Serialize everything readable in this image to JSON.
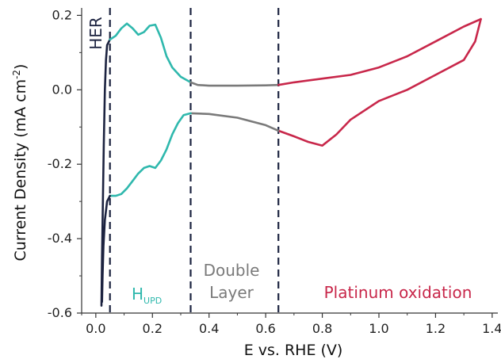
{
  "chart_data": {
    "type": "line",
    "xlabel": "E vs. RHE (V)",
    "ylabel_main": "Current Density (mA cm",
    "ylabel_sup": "-2",
    "ylabel_close": ")",
    "xlim": [
      -0.05,
      1.42
    ],
    "ylim": [
      -0.6,
      0.22
    ],
    "xticks": [
      0.0,
      0.2,
      0.4,
      0.6,
      0.8,
      1.0,
      1.2,
      1.4
    ],
    "xtick_labels": [
      "0.0",
      "0.2",
      "0.4",
      "0.6",
      "0.8",
      "1.0",
      "1.2",
      "1.4"
    ],
    "yticks": [
      0.2,
      0.0,
      -0.2,
      -0.4,
      -0.6
    ],
    "ytick_labels": [
      "0.2",
      "0.0",
      "-0.2",
      "-0.4",
      "-0.6"
    ],
    "dividers": [
      0.05,
      0.335,
      0.645
    ],
    "colors": {
      "her": "#1c2340",
      "hupd": "#2fb8ad",
      "double": "#7a7a7a",
      "ptox": "#c8274a",
      "divider": "#1c2340",
      "axis": "#333333"
    },
    "region_labels": {
      "her": "HER",
      "hupd_main": "H",
      "hupd_sub": "UPD",
      "double_line1": "Double",
      "double_line2": "Layer",
      "ptox": "Platinum oxidation"
    },
    "series": [
      {
        "region": "her",
        "segment": "anodic",
        "color_key": "her",
        "points": [
          [
            0.02,
            -0.58
          ],
          [
            0.022,
            -0.45
          ],
          [
            0.025,
            -0.3
          ],
          [
            0.028,
            -0.15
          ],
          [
            0.032,
            0.0
          ],
          [
            0.036,
            0.08
          ],
          [
            0.04,
            0.12
          ],
          [
            0.05,
            0.135
          ]
        ]
      },
      {
        "region": "hupd",
        "segment": "anodic",
        "color_key": "hupd",
        "points": [
          [
            0.05,
            0.135
          ],
          [
            0.07,
            0.145
          ],
          [
            0.09,
            0.165
          ],
          [
            0.11,
            0.178
          ],
          [
            0.13,
            0.165
          ],
          [
            0.15,
            0.148
          ],
          [
            0.17,
            0.155
          ],
          [
            0.19,
            0.172
          ],
          [
            0.21,
            0.175
          ],
          [
            0.23,
            0.14
          ],
          [
            0.25,
            0.09
          ],
          [
            0.27,
            0.06
          ],
          [
            0.3,
            0.035
          ],
          [
            0.335,
            0.02
          ]
        ]
      },
      {
        "region": "double",
        "segment": "anodic",
        "color_key": "double",
        "points": [
          [
            0.335,
            0.02
          ],
          [
            0.36,
            0.013
          ],
          [
            0.4,
            0.011
          ],
          [
            0.5,
            0.011
          ],
          [
            0.6,
            0.012
          ],
          [
            0.645,
            0.013
          ]
        ]
      },
      {
        "region": "ptox",
        "segment": "anodic",
        "color_key": "ptox",
        "points": [
          [
            0.645,
            0.013
          ],
          [
            0.7,
            0.02
          ],
          [
            0.8,
            0.03
          ],
          [
            0.9,
            0.04
          ],
          [
            1.0,
            0.06
          ],
          [
            1.1,
            0.09
          ],
          [
            1.2,
            0.13
          ],
          [
            1.3,
            0.17
          ],
          [
            1.36,
            0.19
          ]
        ]
      },
      {
        "region": "ptox",
        "segment": "cathodic",
        "color_key": "ptox",
        "points": [
          [
            1.36,
            0.19
          ],
          [
            1.34,
            0.13
          ],
          [
            1.3,
            0.08
          ],
          [
            1.2,
            0.04
          ],
          [
            1.1,
            0.0
          ],
          [
            1.0,
            -0.03
          ],
          [
            0.9,
            -0.08
          ],
          [
            0.85,
            -0.12
          ],
          [
            0.8,
            -0.15
          ],
          [
            0.75,
            -0.14
          ],
          [
            0.7,
            -0.125
          ],
          [
            0.645,
            -0.11
          ]
        ]
      },
      {
        "region": "double",
        "segment": "cathodic",
        "color_key": "double",
        "points": [
          [
            0.645,
            -0.11
          ],
          [
            0.6,
            -0.095
          ],
          [
            0.5,
            -0.075
          ],
          [
            0.4,
            -0.065
          ],
          [
            0.335,
            -0.063
          ]
        ]
      },
      {
        "region": "hupd",
        "segment": "cathodic",
        "color_key": "hupd",
        "points": [
          [
            0.335,
            -0.063
          ],
          [
            0.31,
            -0.068
          ],
          [
            0.29,
            -0.09
          ],
          [
            0.27,
            -0.12
          ],
          [
            0.25,
            -0.16
          ],
          [
            0.23,
            -0.19
          ],
          [
            0.21,
            -0.21
          ],
          [
            0.19,
            -0.205
          ],
          [
            0.17,
            -0.21
          ],
          [
            0.15,
            -0.225
          ],
          [
            0.13,
            -0.245
          ],
          [
            0.11,
            -0.265
          ],
          [
            0.09,
            -0.28
          ],
          [
            0.07,
            -0.285
          ],
          [
            0.05,
            -0.285
          ]
        ]
      },
      {
        "region": "her",
        "segment": "cathodic",
        "color_key": "her",
        "points": [
          [
            0.05,
            -0.285
          ],
          [
            0.04,
            -0.3
          ],
          [
            0.032,
            -0.35
          ],
          [
            0.027,
            -0.42
          ],
          [
            0.024,
            -0.5
          ],
          [
            0.022,
            -0.57
          ]
        ]
      }
    ]
  }
}
